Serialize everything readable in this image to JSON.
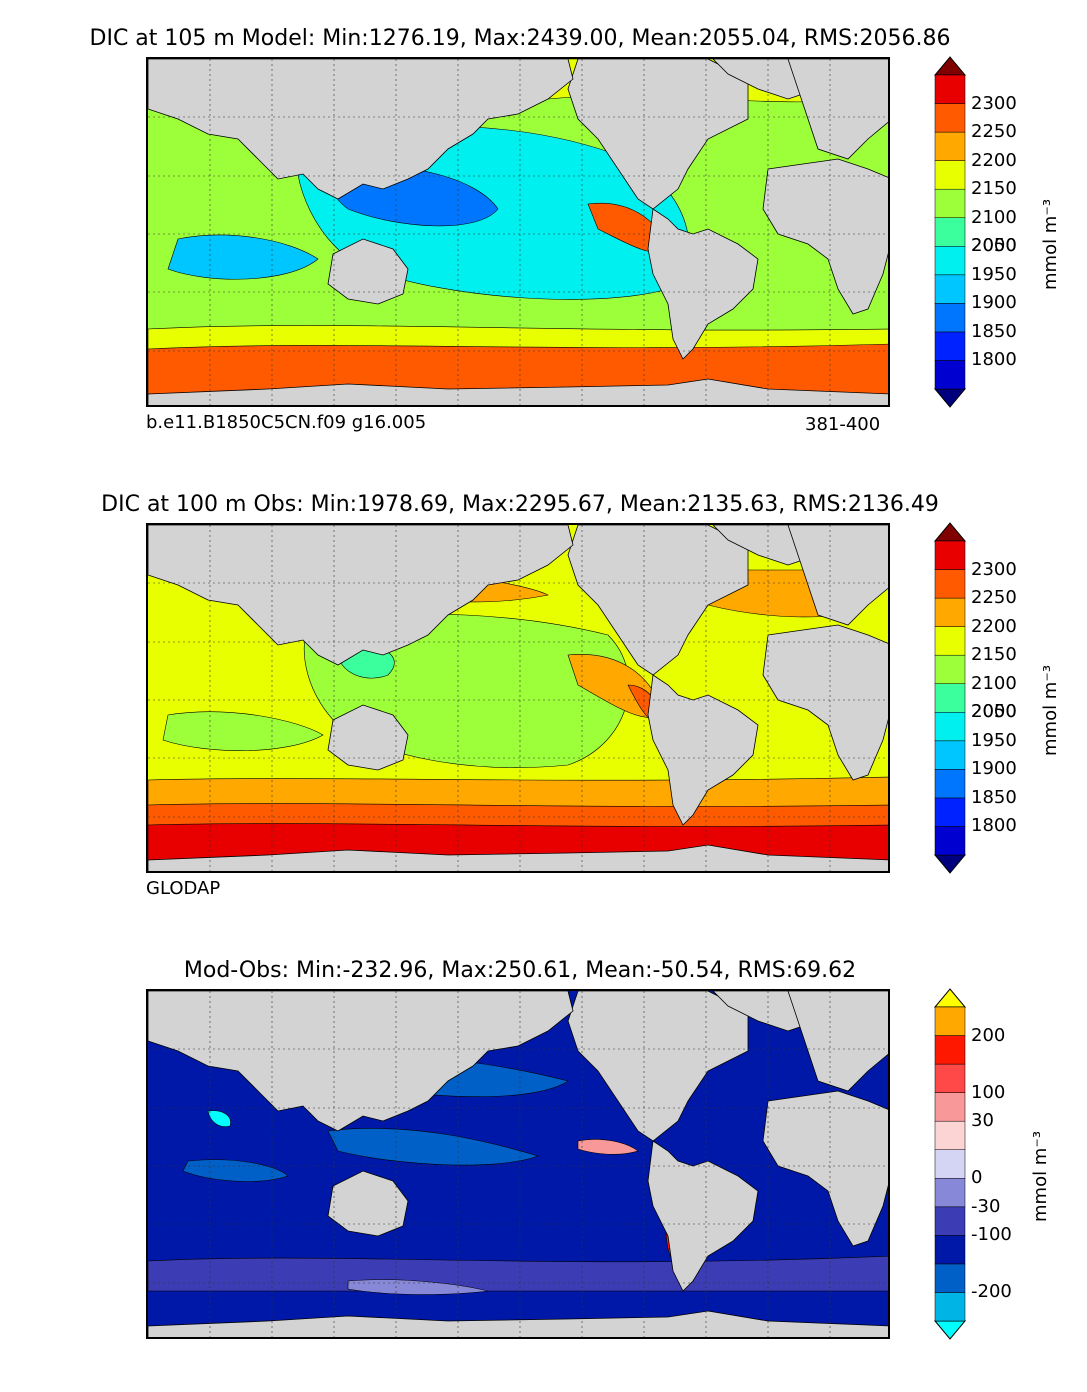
{
  "panels": [
    {
      "title": "DIC at 105 m Model: Min:1276.19, Max:2439.00, Mean:2055.04, RMS:2056.86",
      "footer_left": "b.e11.B1850C5CN.f09 g16.005",
      "footer_right": "381-400",
      "colorbar": {
        "unit": "mmol m⁻³",
        "ticks": [
          "2300",
          "2250",
          "2200",
          "2150",
          "2100",
          "2050",
          "2000",
          "1950",
          "1900",
          "1850",
          "1800"
        ],
        "colors": [
          "#00007f",
          "#0000d0",
          "#0022ff",
          "#0076ff",
          "#00c6ff",
          "#00f0f0",
          "#3aff9c",
          "#9cff3a",
          "#e8ff00",
          "#ffa800",
          "#ff5a00",
          "#e80000",
          "#800000"
        ]
      }
    },
    {
      "title": "DIC at 100 m Obs: Min:1978.69, Max:2295.67, Mean:2135.63, RMS:2136.49",
      "footer_left": "GLODAP",
      "footer_right": "",
      "colorbar": {
        "unit": "mmol m⁻³",
        "ticks": [
          "2300",
          "2250",
          "2200",
          "2150",
          "2100",
          "2050",
          "2000",
          "1950",
          "1900",
          "1850",
          "1800"
        ],
        "colors": [
          "#00007f",
          "#0000d0",
          "#0022ff",
          "#0076ff",
          "#00c6ff",
          "#00f0f0",
          "#3aff9c",
          "#9cff3a",
          "#e8ff00",
          "#ffa800",
          "#ff5a00",
          "#e80000",
          "#800000"
        ]
      }
    },
    {
      "title": "Mod-Obs: Min:-232.96, Max:250.61, Mean:-50.54, RMS:69.62",
      "footer_left": "",
      "footer_right": "",
      "colorbar": {
        "unit": "mmol m⁻³",
        "ticks": [
          "200",
          "100",
          "30",
          "0",
          "-30",
          "-100",
          "-200"
        ],
        "colors": [
          "#00ffff",
          "#00b4e6",
          "#0060c8",
          "#0018a8",
          "#3c3cb4",
          "#8888d8",
          "#d4d4f4",
          "#fcd4d4",
          "#f89898",
          "#ff4848",
          "#ff1800",
          "#ffa800",
          "#ffff00"
        ]
      }
    }
  ],
  "chart_data": [
    {
      "type": "heatmap",
      "title": "DIC at 105 m Model: Min:1276.19, Max:2439.00, Mean:2055.04, RMS:2056.86",
      "variable": "DIC",
      "depth_m": 105,
      "source": "Model",
      "stats": {
        "min": 1276.19,
        "max": 2439.0,
        "mean": 2055.04,
        "rms": 2056.86
      },
      "colorbar_ticks": [
        1800,
        1850,
        1900,
        1950,
        2000,
        2050,
        2100,
        2150,
        2200,
        2250,
        2300
      ],
      "colorbar_label": "mmol m⁻³",
      "grid": true,
      "annotations": [
        "b.e11.B1850C5CN.f09 g16.005",
        "381-400"
      ]
    },
    {
      "type": "heatmap",
      "title": "DIC at 100 m Obs: Min:1978.69, Max:2295.67, Mean:2135.63, RMS:2136.49",
      "variable": "DIC",
      "depth_m": 100,
      "source": "Obs",
      "stats": {
        "min": 1978.69,
        "max": 2295.67,
        "mean": 2135.63,
        "rms": 2136.49
      },
      "colorbar_ticks": [
        1800,
        1850,
        1900,
        1950,
        2000,
        2050,
        2100,
        2150,
        2200,
        2250,
        2300
      ],
      "colorbar_label": "mmol m⁻³",
      "grid": true,
      "annotations": [
        "GLODAP"
      ]
    },
    {
      "type": "heatmap",
      "title": "Mod-Obs: Min:-232.96, Max:250.61, Mean:-50.54, RMS:69.62",
      "source": "Mod-Obs",
      "stats": {
        "min": -232.96,
        "max": 250.61,
        "mean": -50.54,
        "rms": 69.62
      },
      "colorbar_ticks": [
        -200,
        -100,
        -30,
        0,
        30,
        100,
        200
      ],
      "colorbar_label": "mmol m⁻³",
      "grid": true
    }
  ]
}
